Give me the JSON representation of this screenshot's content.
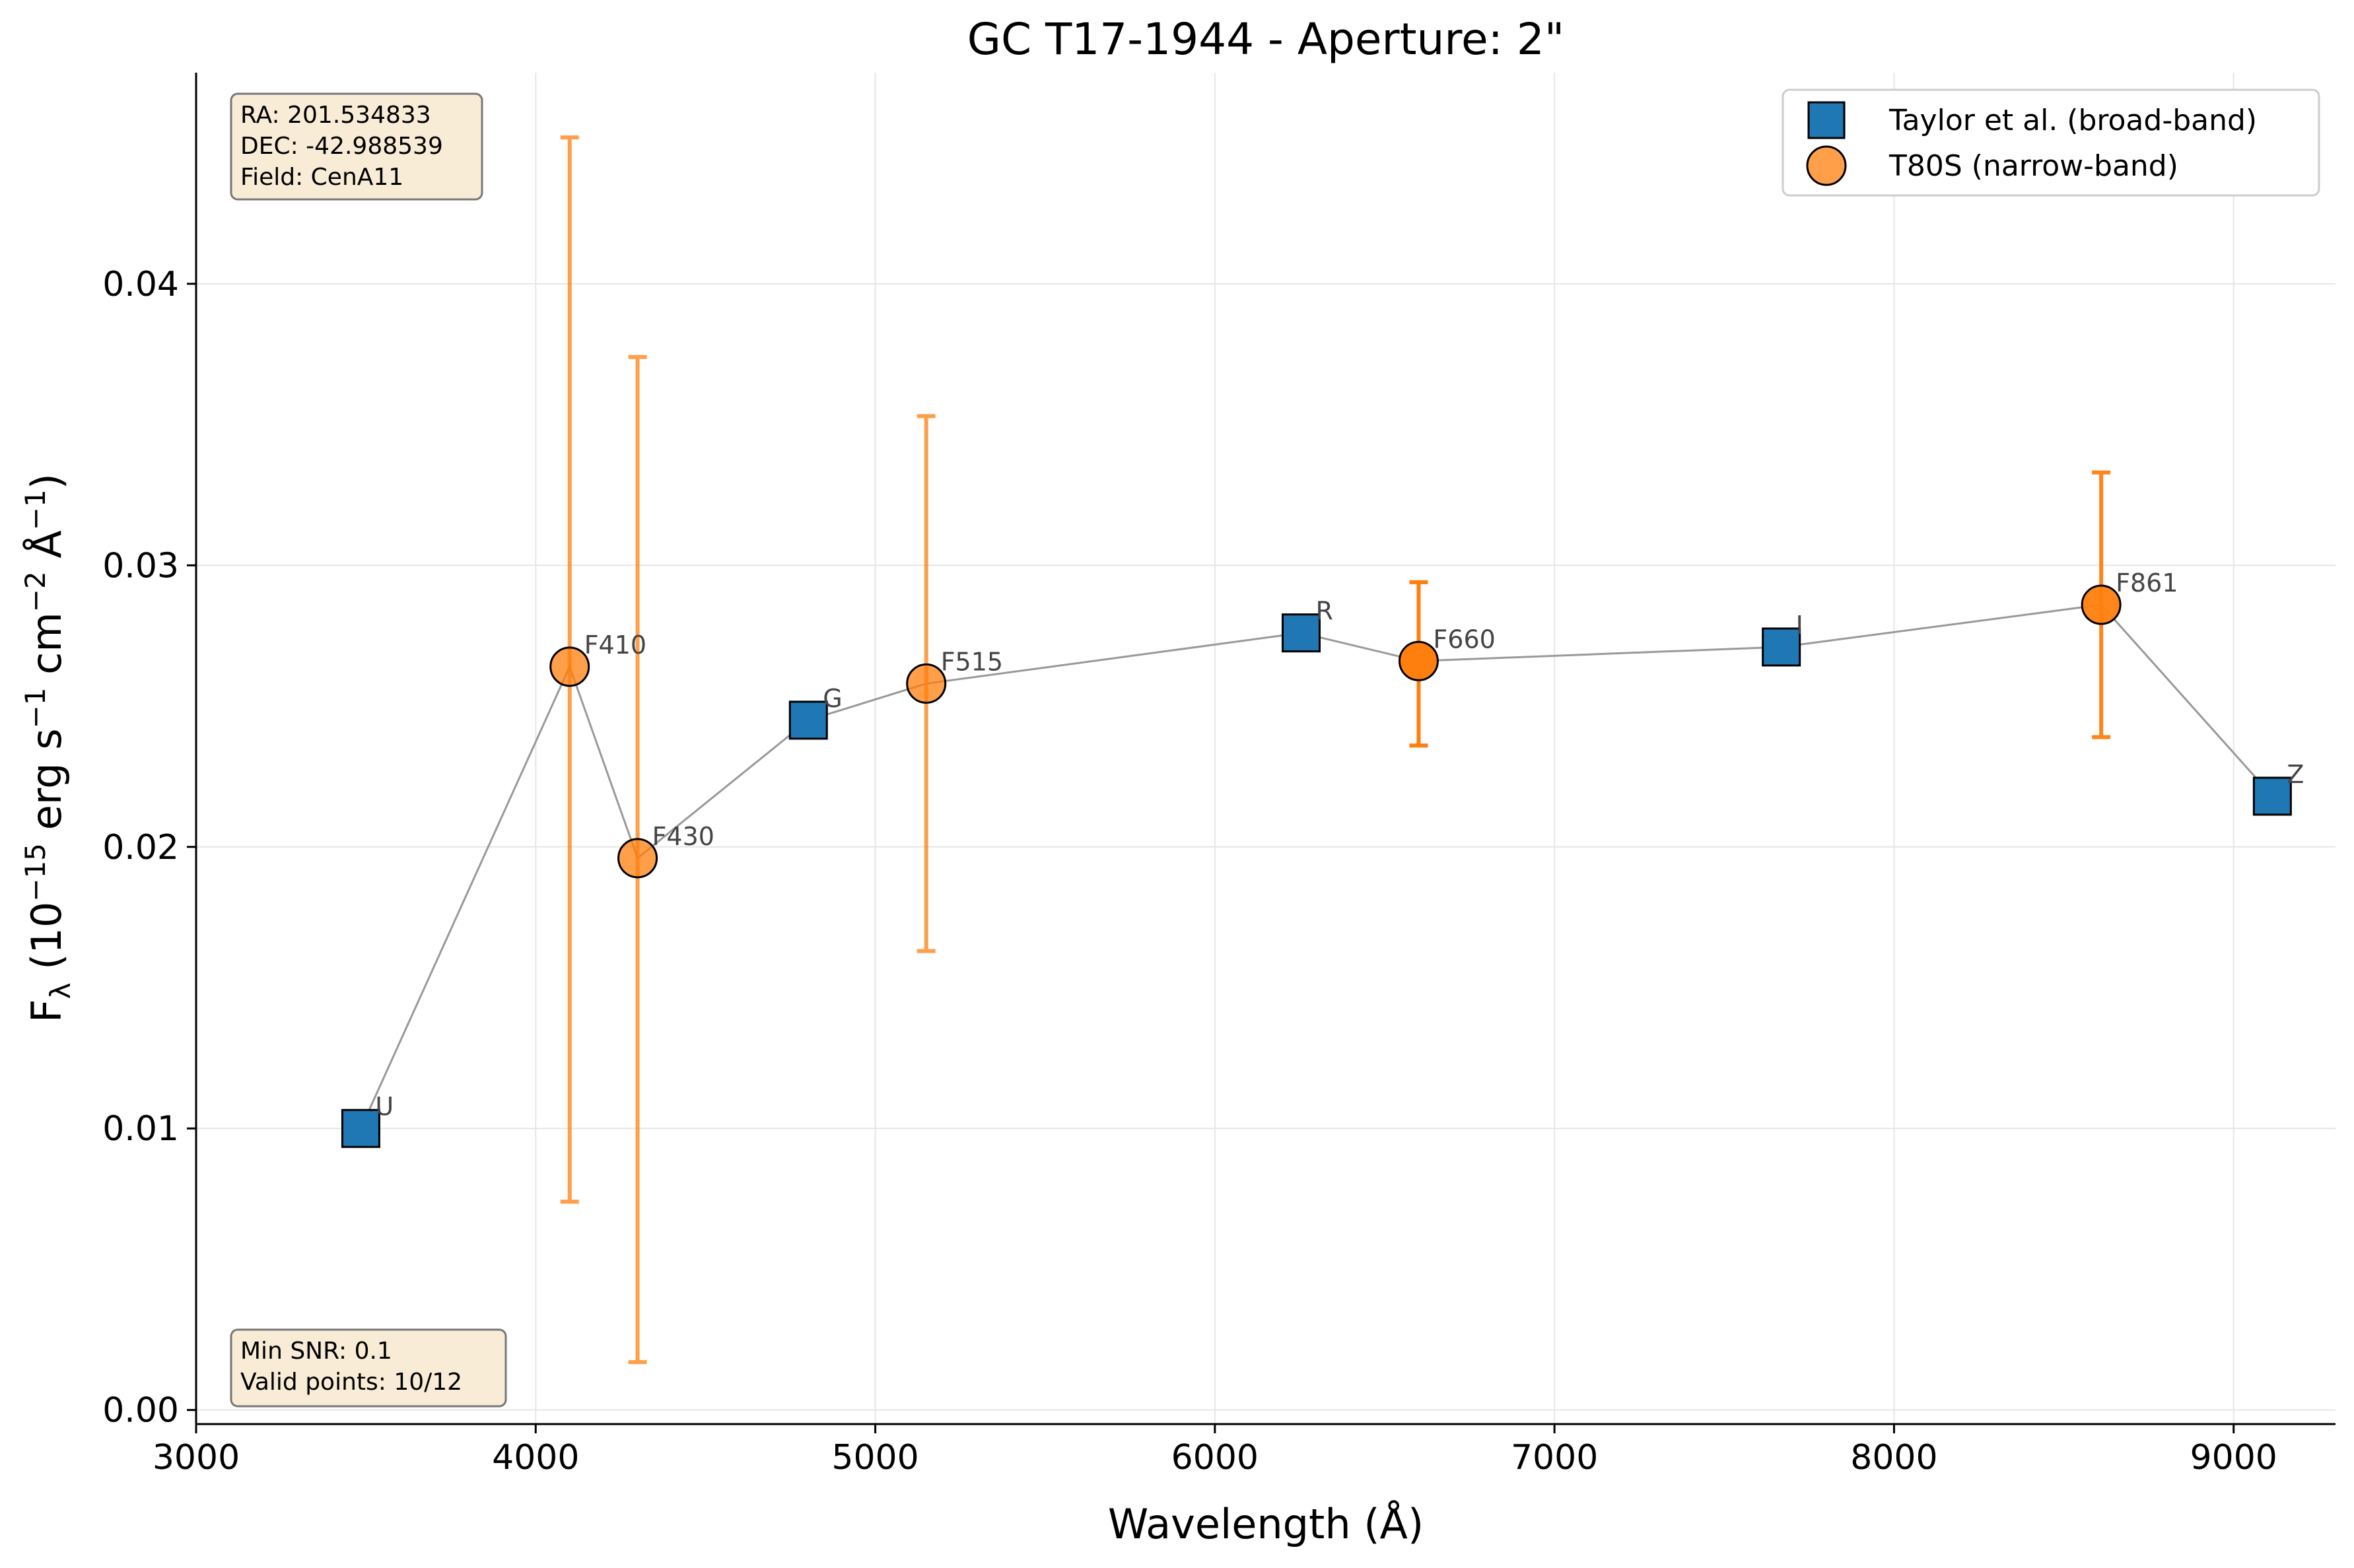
{
  "chart_data": {
    "type": "scatter",
    "title": "GC T17-1944 - Aperture: 2\"",
    "xlabel": "Wavelength (Å)",
    "ylabel": "F_λ (10^-15 erg s^-1 cm^-2 Å^-1)",
    "ylabel_parts": {
      "main": "F",
      "sub": "λ",
      "a": " (10",
      "a_sup": "−15",
      "b": " erg s",
      "b_sup": "−1",
      "c": " cm",
      "c_sup": "−2",
      "d": " Å",
      "d_sup": "−1",
      "e": ")"
    },
    "xlim": [
      3000,
      9300
    ],
    "ylim": [
      -0.0005,
      0.0475
    ],
    "xticks": [
      3000,
      4000,
      5000,
      6000,
      7000,
      8000,
      9000
    ],
    "yticks": [
      0.0,
      0.01,
      0.02,
      0.03,
      0.04
    ],
    "ytick_labels": [
      "0.00",
      "0.01",
      "0.02",
      "0.03",
      "0.04"
    ],
    "grid": true,
    "legend_position": "top-right",
    "connecting_line": {
      "color": "#999999",
      "order": [
        "U",
        "F410",
        "F430",
        "G",
        "F515",
        "R",
        "F660",
        "I",
        "F861",
        "Z"
      ]
    },
    "series": [
      {
        "name": "Taylor et al. (broad-band)",
        "marker": "square",
        "color": "#1f77b4",
        "points": [
          {
            "label": "U",
            "x": 3485,
            "y": 0.01
          },
          {
            "label": "G",
            "x": 4803,
            "y": 0.0245
          },
          {
            "label": "R",
            "x": 6254,
            "y": 0.0276
          },
          {
            "label": "I",
            "x": 7668,
            "y": 0.0271
          },
          {
            "label": "Z",
            "x": 9114,
            "y": 0.0218
          }
        ]
      },
      {
        "name": "T80S (narrow-band)",
        "marker": "circle",
        "color": "#ff7f0e",
        "points": [
          {
            "label": "F410",
            "x": 4100,
            "y": 0.0264,
            "err_low": 0.0074,
            "err_high": 0.0452,
            "alpha": 0.75
          },
          {
            "label": "F430",
            "x": 4300,
            "y": 0.0196,
            "err_low": 0.0017,
            "err_high": 0.0374,
            "alpha": 0.75
          },
          {
            "label": "F515",
            "x": 5150,
            "y": 0.0258,
            "err_low": 0.0163,
            "err_high": 0.0353,
            "alpha": 0.75
          },
          {
            "label": "F660",
            "x": 6600,
            "y": 0.0266,
            "err_low": 0.0236,
            "err_high": 0.0294,
            "alpha": 1.0
          },
          {
            "label": "F861",
            "x": 8610,
            "y": 0.0286,
            "err_low": 0.0239,
            "err_high": 0.0333,
            "alpha": 0.95
          }
        ]
      }
    ],
    "info_box_top": [
      "RA: 201.534833",
      "DEC: -42.988539",
      "Field: CenA11"
    ],
    "info_box_bottom": [
      "Min SNR: 0.1",
      "Valid points: 10/12"
    ]
  }
}
